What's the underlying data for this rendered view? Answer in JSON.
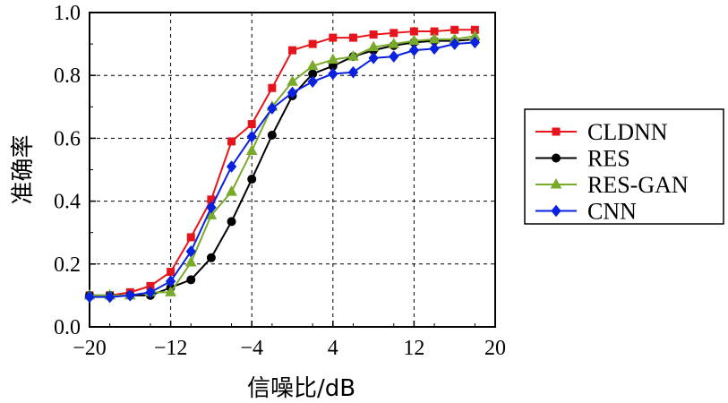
{
  "chart_data": {
    "type": "line",
    "title": "",
    "xlabel": "信噪比/dB",
    "ylabel": "准确率",
    "xlim": [
      -20,
      20
    ],
    "ylim": [
      0.0,
      1.0
    ],
    "xticks": [
      -20,
      -12,
      -4,
      4,
      12,
      20
    ],
    "xtick_labels": [
      "−20",
      "−12",
      "−4",
      "4",
      "12",
      "20"
    ],
    "yticks": [
      0.0,
      0.2,
      0.4,
      0.6,
      0.8,
      1.0
    ],
    "ytick_labels": [
      "0.0",
      "0.2",
      "0.4",
      "0.6",
      "0.8",
      "1.0"
    ],
    "grid": true,
    "legend_position": "right",
    "x": [
      -20,
      -18,
      -16,
      -14,
      -12,
      -10,
      -8,
      -6,
      -4,
      -2,
      0,
      2,
      4,
      6,
      8,
      10,
      12,
      14,
      16,
      18
    ],
    "series": [
      {
        "name": "CLDNN",
        "color": "#e8141c",
        "marker": "square",
        "values": [
          0.1,
          0.1,
          0.11,
          0.13,
          0.175,
          0.285,
          0.405,
          0.59,
          0.645,
          0.76,
          0.88,
          0.9,
          0.92,
          0.92,
          0.93,
          0.935,
          0.94,
          0.94,
          0.945,
          0.945
        ]
      },
      {
        "name": "RES",
        "color": "#000000",
        "marker": "circle",
        "values": [
          0.1,
          0.1,
          0.1,
          0.1,
          0.125,
          0.15,
          0.22,
          0.335,
          0.47,
          0.61,
          0.735,
          0.805,
          0.83,
          0.86,
          0.88,
          0.895,
          0.905,
          0.91,
          0.91,
          0.915
        ]
      },
      {
        "name": "RES-GAN",
        "color": "#7aaa2c",
        "marker": "triangle",
        "values": [
          0.1,
          0.1,
          0.1,
          0.11,
          0.11,
          0.205,
          0.355,
          0.43,
          0.56,
          0.7,
          0.78,
          0.83,
          0.85,
          0.86,
          0.89,
          0.9,
          0.91,
          0.915,
          0.915,
          0.925
        ]
      },
      {
        "name": "CNN",
        "color": "#0a22e0",
        "marker": "diamond",
        "values": [
          0.095,
          0.095,
          0.1,
          0.11,
          0.145,
          0.24,
          0.38,
          0.51,
          0.605,
          0.695,
          0.745,
          0.78,
          0.805,
          0.81,
          0.855,
          0.86,
          0.88,
          0.885,
          0.9,
          0.905
        ]
      }
    ]
  }
}
